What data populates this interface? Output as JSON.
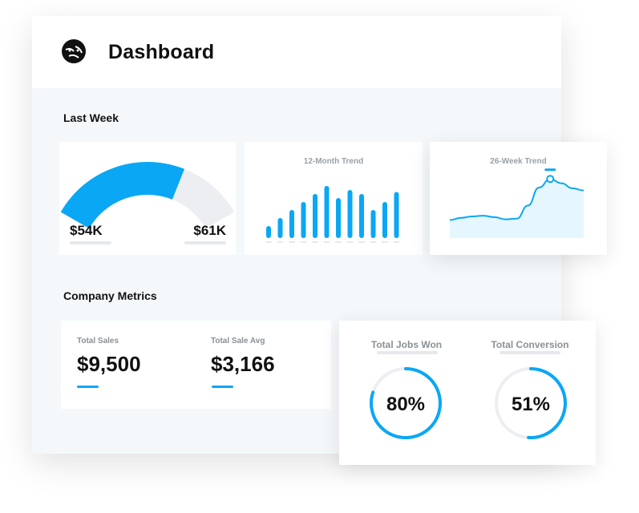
{
  "header": {
    "title": "Dashboard",
    "logo_icon": "tiger-logo-icon"
  },
  "last_week": {
    "section_title": "Last Week",
    "gauge": {
      "min_label": "$54K",
      "max_label": "$61K",
      "fill_fraction": 0.68
    },
    "trend12": {
      "title": "12-Month Trend",
      "chart_data": {
        "type": "bar",
        "values": [
          3,
          5,
          7,
          9,
          11,
          13,
          10,
          12,
          11,
          7,
          9,
          11.5
        ],
        "ylim": [
          0,
          14
        ]
      }
    },
    "trend26": {
      "title": "26-Week Trend",
      "chart_data": {
        "type": "area",
        "values": [
          2.5,
          2.8,
          3.0,
          3.1,
          2.9,
          2.6,
          2.7,
          4.5,
          7.0,
          8.2,
          7.6,
          6.9,
          6.6
        ],
        "highlight_index": 9,
        "ylim": [
          0,
          10
        ]
      }
    }
  },
  "company_metrics": {
    "section_title": "Company Metrics",
    "total_sales": {
      "label": "Total Sales",
      "value": "$9,500"
    },
    "total_sale_avg": {
      "label": "Total Sale Avg",
      "value": "$3,166"
    },
    "jobs_won": {
      "label": "Total Jobs Won",
      "value": "80%",
      "fraction": 0.8
    },
    "conversion": {
      "label": "Total Conversion",
      "value": "51%",
      "fraction": 0.51
    }
  },
  "colors": {
    "accent": "#0aa7f5",
    "track": "#eceef2",
    "area_fill": "#e6f6fe"
  }
}
